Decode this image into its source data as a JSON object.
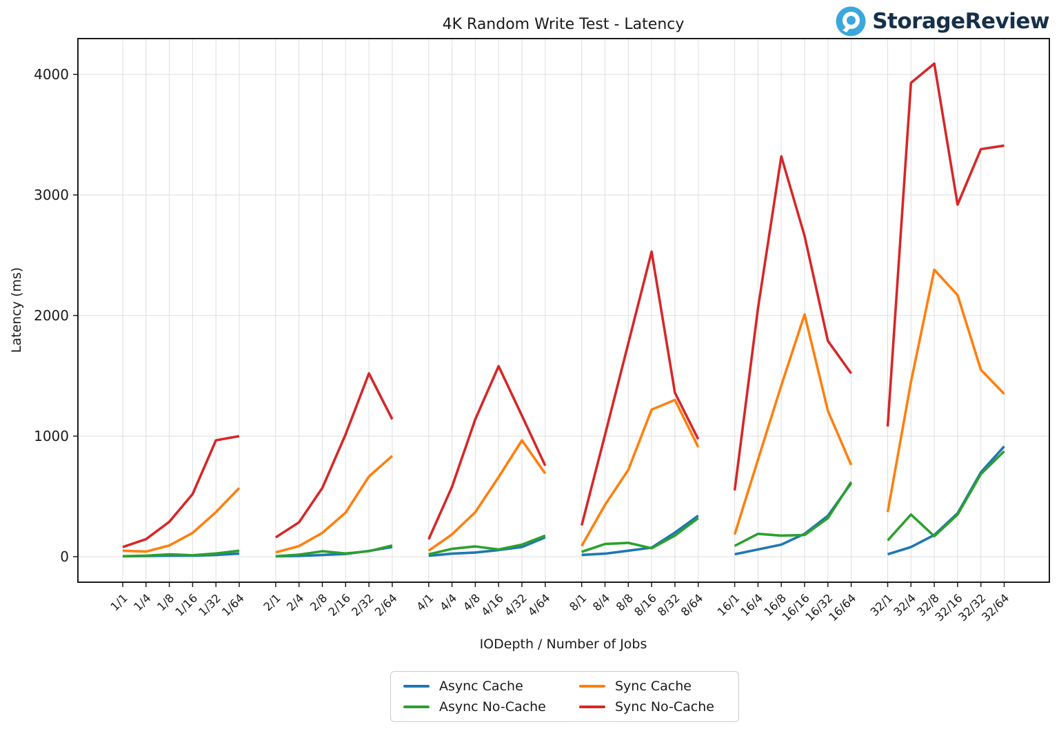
{
  "logo": {
    "text": "StorageReview",
    "icon_color": "#3aa7dd",
    "text_color": "#16304a"
  },
  "legend": {
    "items": [
      {
        "label": "Async Cache",
        "color": "#1f77b4"
      },
      {
        "label": "Async No-Cache",
        "color": "#2ca02c"
      },
      {
        "label": "Sync Cache",
        "color": "#ff7f0e"
      },
      {
        "label": "Sync No-Cache",
        "color": "#d62728"
      }
    ]
  },
  "chart_data": {
    "type": "line",
    "title": "4K Random Write Test - Latency",
    "xlabel": "IODepth / Number of Jobs",
    "ylabel": "Latency (ms)",
    "yticks": [
      0,
      1000,
      2000,
      3000,
      4000
    ],
    "ylim": [
      -210,
      4290
    ],
    "grid": true,
    "legend_position": "bottom-center",
    "group_size": 6,
    "categories": [
      "1/1",
      "1/4",
      "1/8",
      "1/16",
      "1/32",
      "1/64",
      "2/1",
      "2/4",
      "2/8",
      "2/16",
      "2/32",
      "2/64",
      "4/1",
      "4/4",
      "4/8",
      "4/16",
      "4/32",
      "4/64",
      "8/1",
      "8/4",
      "8/8",
      "8/16",
      "8/32",
      "8/64",
      "16/1",
      "16/4",
      "16/8",
      "16/16",
      "16/32",
      "16/64",
      "32/1",
      "32/4",
      "32/8",
      "32/16",
      "32/32",
      "32/64"
    ],
    "series": [
      {
        "name": "Async Cache",
        "color": "#1f77b4",
        "values": [
          3,
          5,
          8,
          8,
          15,
          25,
          3,
          6,
          15,
          22,
          48,
          80,
          8,
          25,
          35,
          55,
          80,
          160,
          15,
          25,
          50,
          75,
          200,
          340,
          20,
          60,
          100,
          190,
          340,
          610,
          20,
          80,
          180,
          360,
          700,
          915
        ]
      },
      {
        "name": "Async No-Cache",
        "color": "#2ca02c",
        "values": [
          4,
          8,
          20,
          12,
          27,
          50,
          4,
          17,
          45,
          27,
          46,
          93,
          20,
          65,
          85,
          60,
          100,
          175,
          40,
          105,
          115,
          70,
          175,
          320,
          90,
          190,
          175,
          180,
          320,
          620,
          135,
          350,
          170,
          350,
          685,
          875
        ]
      },
      {
        "name": "Sync Cache",
        "color": "#ff7f0e",
        "values": [
          50,
          42,
          93,
          198,
          370,
          570,
          36,
          88,
          198,
          366,
          665,
          836,
          50,
          185,
          370,
          660,
          965,
          690,
          90,
          430,
          720,
          1220,
          1300,
          910,
          185,
          805,
          1420,
          2010,
          1210,
          760,
          370,
          1450,
          2380,
          2170,
          1550,
          1350
        ]
      },
      {
        "name": "Sync No-Cache",
        "color": "#d62728",
        "values": [
          80,
          145,
          290,
          520,
          965,
          1000,
          160,
          285,
          570,
          1015,
          1520,
          1140,
          145,
          580,
          1140,
          1580,
          1170,
          755,
          260,
          1010,
          1770,
          2530,
          1360,
          975,
          550,
          2060,
          3320,
          2660,
          1790,
          1520,
          1080,
          3930,
          4090,
          2920,
          3380,
          3410
        ]
      }
    ]
  }
}
